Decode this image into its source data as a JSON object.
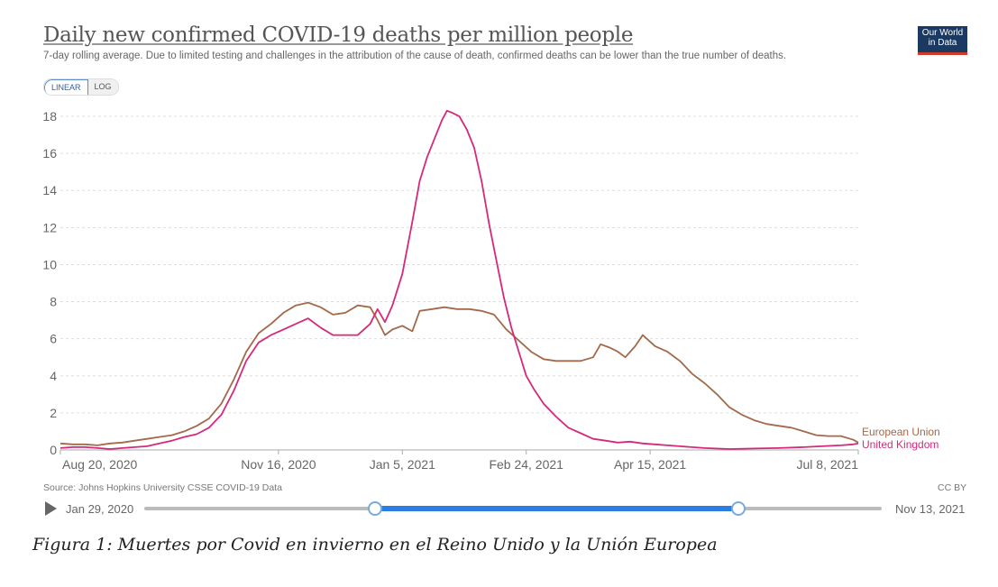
{
  "header": {
    "title": "Daily new confirmed COVID-19 deaths per million people",
    "subtitle": "7-day rolling average. Due to limited testing and challenges in the attribution of the cause of death, confirmed deaths can be lower than the true number of deaths.",
    "logo_line1": "Our World",
    "logo_line2": "in Data"
  },
  "toggle": {
    "linear_label": "LINEAR",
    "log_label": "LOG",
    "selected": "LINEAR"
  },
  "footer": {
    "source": "Source: Johns Hopkins University CSSE COVID-19 Data",
    "license": "CC BY",
    "timeline_start": "Jan 29, 2020",
    "timeline_end": "Nov 13, 2021",
    "range_start_fraction": 0.313,
    "range_end_fraction": 0.806
  },
  "caption": "Figura 1: Muertes por Covid en invierno en el Reino Unido y la Unión Europea",
  "colors": {
    "eu": "#a2694a",
    "uk": "#d5297a",
    "grid": "#dddddd"
  },
  "chart_data": {
    "type": "line",
    "title": "Daily new confirmed COVID-19 deaths per million people",
    "xlabel": "",
    "ylabel": "",
    "x_unit": "days since Aug 20, 2020",
    "xlim": [
      0,
      322
    ],
    "ylim": [
      0,
      18
    ],
    "yticks": [
      0,
      2,
      4,
      6,
      8,
      10,
      12,
      14,
      16,
      18
    ],
    "xticks": [
      {
        "day": 0,
        "label": "Aug 20, 2020"
      },
      {
        "day": 88,
        "label": "Nov 16, 2020"
      },
      {
        "day": 138,
        "label": "Jan 5, 2021"
      },
      {
        "day": 188,
        "label": "Feb 24, 2021"
      },
      {
        "day": 238,
        "label": "Apr 15, 2021"
      },
      {
        "day": 322,
        "label": "Jul 8, 2021"
      }
    ],
    "grid": true,
    "legend": "end-of-line labels, right",
    "series": [
      {
        "name": "European Union",
        "x": [
          0,
          5,
          10,
          15,
          20,
          25,
          30,
          35,
          40,
          45,
          50,
          55,
          60,
          65,
          70,
          75,
          80,
          85,
          90,
          95,
          100,
          105,
          110,
          115,
          120,
          125,
          128,
          131,
          134,
          138,
          142,
          145,
          150,
          155,
          160,
          165,
          170,
          175,
          180,
          185,
          190,
          195,
          200,
          205,
          210,
          215,
          218,
          222,
          225,
          228,
          232,
          235,
          240,
          245,
          250,
          255,
          260,
          265,
          270,
          275,
          280,
          285,
          290,
          295,
          300,
          305,
          310,
          315,
          320,
          322
        ],
        "values": [
          0.35,
          0.3,
          0.3,
          0.25,
          0.35,
          0.4,
          0.5,
          0.6,
          0.7,
          0.8,
          1.0,
          1.3,
          1.7,
          2.5,
          3.8,
          5.3,
          6.3,
          6.8,
          7.4,
          7.8,
          7.95,
          7.7,
          7.3,
          7.4,
          7.8,
          7.7,
          7.0,
          6.2,
          6.5,
          6.7,
          6.4,
          7.5,
          7.6,
          7.7,
          7.6,
          7.6,
          7.5,
          7.3,
          6.5,
          5.9,
          5.3,
          4.9,
          4.8,
          4.8,
          4.8,
          5.0,
          5.7,
          5.5,
          5.3,
          5.0,
          5.6,
          6.2,
          5.6,
          5.3,
          4.8,
          4.1,
          3.6,
          3.0,
          2.3,
          1.9,
          1.6,
          1.4,
          1.3,
          1.2,
          1.0,
          0.8,
          0.75,
          0.75,
          0.55,
          0.4
        ]
      },
      {
        "name": "United Kingdom",
        "x": [
          0,
          5,
          10,
          15,
          20,
          25,
          30,
          35,
          40,
          45,
          50,
          55,
          60,
          65,
          70,
          75,
          80,
          85,
          90,
          95,
          100,
          105,
          110,
          115,
          120,
          125,
          128,
          131,
          134,
          138,
          142,
          145,
          148,
          151,
          154,
          156,
          158,
          161,
          164,
          167,
          170,
          173,
          176,
          179,
          182,
          185,
          188,
          191,
          195,
          200,
          205,
          210,
          215,
          220,
          225,
          230,
          235,
          240,
          245,
          250,
          260,
          270,
          280,
          290,
          300,
          310,
          315,
          320,
          322
        ],
        "values": [
          0.1,
          0.15,
          0.15,
          0.1,
          0.05,
          0.1,
          0.15,
          0.2,
          0.35,
          0.5,
          0.7,
          0.85,
          1.2,
          1.9,
          3.2,
          4.8,
          5.8,
          6.2,
          6.5,
          6.8,
          7.1,
          6.6,
          6.2,
          6.2,
          6.2,
          6.8,
          7.6,
          6.9,
          7.8,
          9.5,
          12.3,
          14.5,
          15.8,
          16.8,
          17.8,
          18.3,
          18.2,
          18.0,
          17.3,
          16.3,
          14.5,
          12.2,
          10.2,
          8.2,
          6.6,
          5.3,
          4.0,
          3.3,
          2.5,
          1.8,
          1.2,
          0.9,
          0.6,
          0.5,
          0.4,
          0.45,
          0.35,
          0.3,
          0.25,
          0.2,
          0.1,
          0.05,
          0.08,
          0.1,
          0.15,
          0.22,
          0.25,
          0.3,
          0.35
        ]
      }
    ]
  }
}
